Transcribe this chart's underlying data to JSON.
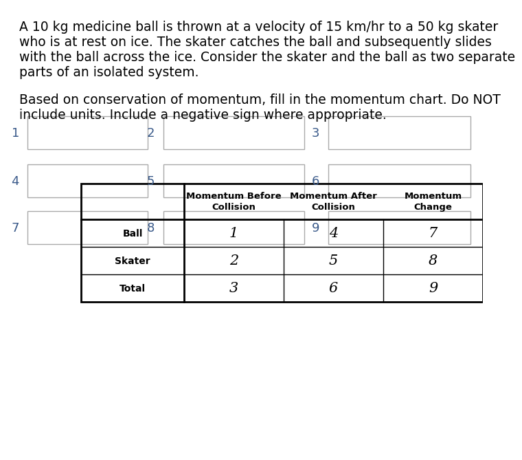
{
  "para1_lines": [
    "A 10 kg medicine ball is thrown at a velocity of 15 km/hr to a 50 kg skater",
    "who is at rest on ice. The skater catches the ball and subsequently slides",
    "with the ball across the ice. Consider the skater and the ball as two separate",
    "parts of an isolated system."
  ],
  "para2_lines": [
    "Based on conservation of momentum, fill in the momentum chart. Do NOT",
    "include units. Include a negative sign where appropriate."
  ],
  "col_headers": [
    "Momentum Before\nCollision",
    "Momentum After\nCollision",
    "Momentum\nChange"
  ],
  "row_headers": [
    "Ball",
    "Skater",
    "Total"
  ],
  "cells": [
    [
      "1",
      "4",
      "7"
    ],
    [
      "2",
      "5",
      "8"
    ],
    [
      "3",
      "6",
      "9"
    ]
  ],
  "box_labels": [
    "1",
    "2",
    "3",
    "4",
    "5",
    "6",
    "7",
    "8",
    "9"
  ],
  "bg_color": "#ffffff",
  "text_color": "#000000",
  "label_color": "#3a5a8a"
}
